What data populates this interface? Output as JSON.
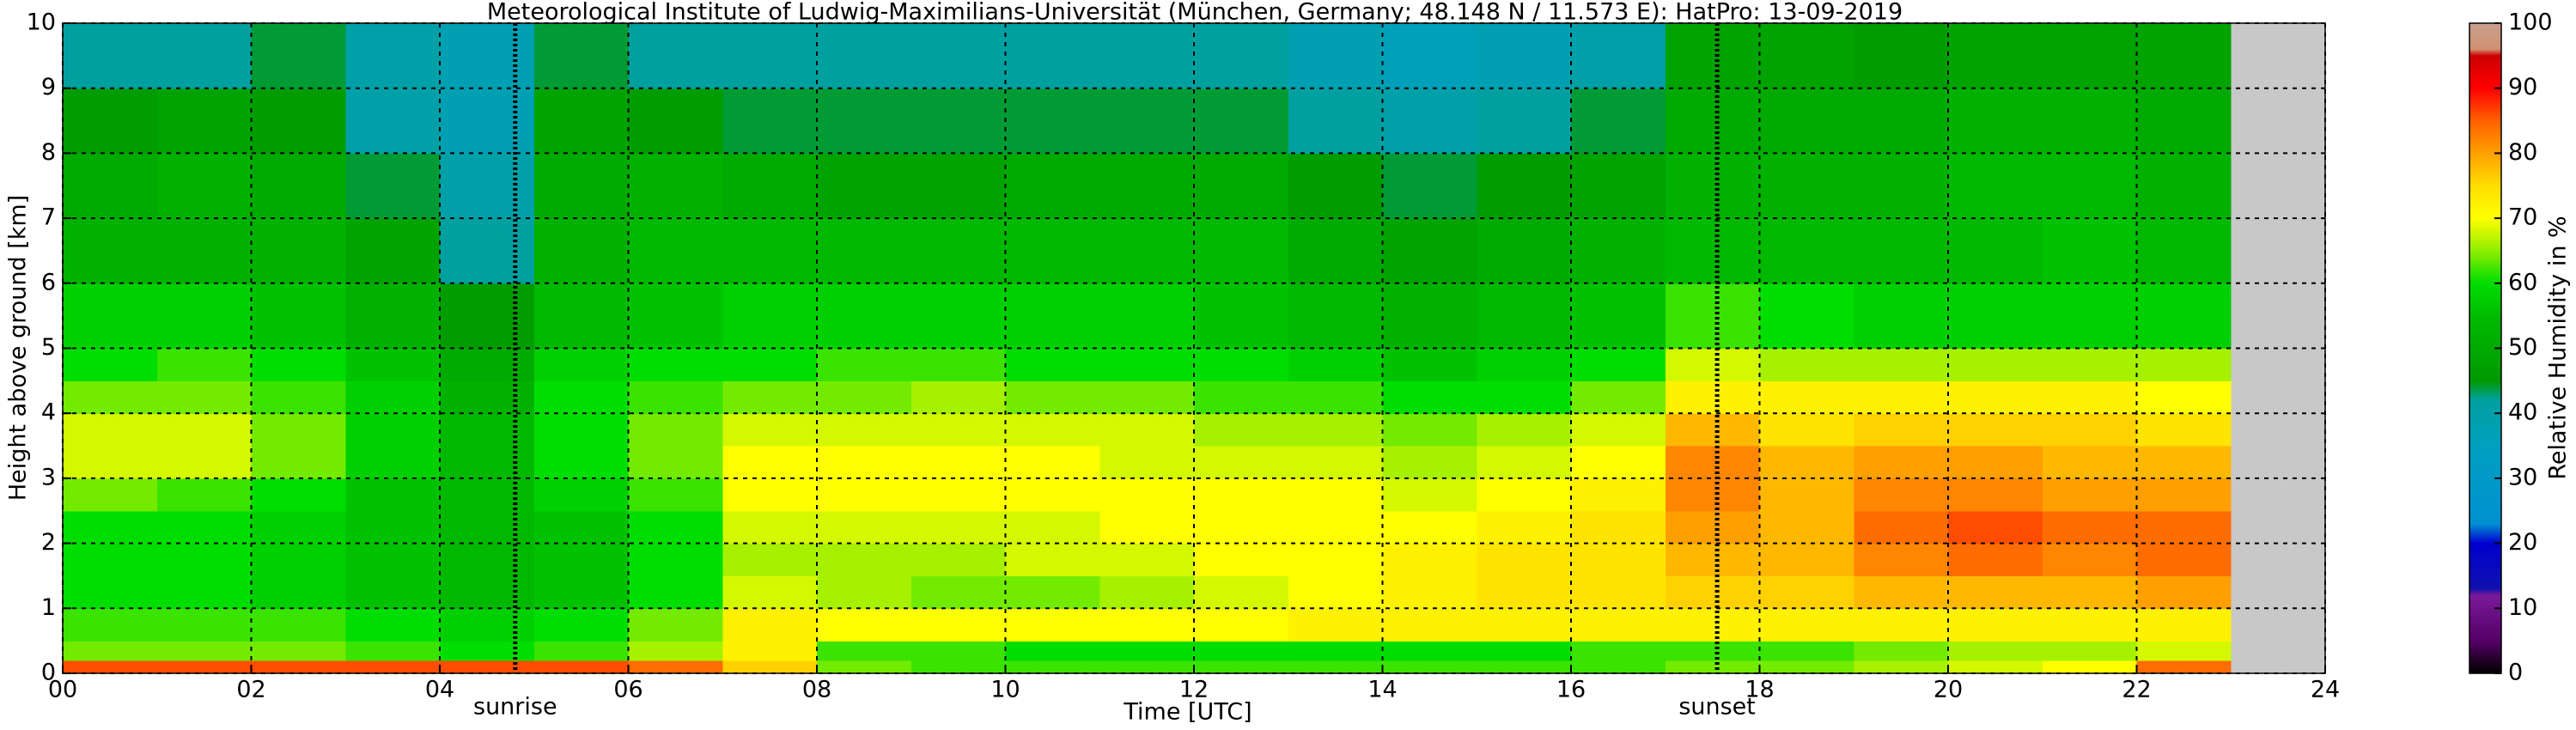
{
  "chart_data": {
    "type": "heatmap",
    "title": "Meteorological Institute of Ludwig-Maximilians-Universität (München, Germany; 48.148 N / 11.573 E):    HatPro: 13-09-2019",
    "x_label": "Time [UTC]",
    "y_label": "Height above ground [km]",
    "xlim": [
      0,
      24
    ],
    "ylim": [
      0,
      10
    ],
    "xticks": [
      {
        "value": 0,
        "label": "00"
      },
      {
        "value": 2,
        "label": "02"
      },
      {
        "value": 4,
        "label": "04"
      },
      {
        "value": 6,
        "label": "06"
      },
      {
        "value": 8,
        "label": "08"
      },
      {
        "value": 10,
        "label": "10"
      },
      {
        "value": 12,
        "label": "12"
      },
      {
        "value": 14,
        "label": "14"
      },
      {
        "value": 16,
        "label": "16"
      },
      {
        "value": 18,
        "label": "18"
      },
      {
        "value": 20,
        "label": "20"
      },
      {
        "value": 22,
        "label": "22"
      },
      {
        "value": 24,
        "label": "24"
      }
    ],
    "yticks": [
      0,
      1,
      2,
      3,
      4,
      5,
      6,
      7,
      8,
      9,
      10
    ],
    "grid": true,
    "x_edges": [
      0,
      1,
      2,
      3,
      4,
      5,
      6,
      7,
      8,
      9,
      10,
      11,
      12,
      13,
      14,
      15,
      16,
      17,
      18,
      19,
      20,
      21,
      22,
      23,
      24
    ],
    "y_edges": [
      0,
      0.2,
      0.5,
      1,
      1.5,
      2,
      2.5,
      3,
      3.5,
      4,
      4.5,
      5,
      6,
      7,
      8,
      9,
      10
    ],
    "z": [
      [
        86,
        86,
        86,
        86,
        86,
        86,
        84,
        76,
        64,
        62,
        62,
        62,
        62,
        62,
        62,
        62,
        62,
        64,
        64,
        66,
        68,
        70,
        84,
        null
      ],
      [
        64,
        64,
        64,
        62,
        60,
        62,
        66,
        72,
        62,
        62,
        60,
        60,
        60,
        60,
        60,
        60,
        62,
        62,
        62,
        64,
        66,
        66,
        68,
        null
      ],
      [
        62,
        62,
        62,
        60,
        58,
        60,
        64,
        72,
        70,
        70,
        70,
        70,
        70,
        72,
        72,
        72,
        72,
        72,
        72,
        72,
        72,
        72,
        72,
        null
      ],
      [
        60,
        60,
        58,
        56,
        54,
        56,
        60,
        68,
        66,
        64,
        64,
        66,
        68,
        70,
        72,
        74,
        74,
        76,
        76,
        78,
        78,
        78,
        80,
        null
      ],
      [
        60,
        60,
        58,
        56,
        54,
        56,
        60,
        66,
        66,
        66,
        68,
        68,
        70,
        70,
        72,
        74,
        74,
        78,
        78,
        82,
        84,
        82,
        84,
        null
      ],
      [
        60,
        60,
        58,
        56,
        54,
        56,
        60,
        68,
        68,
        68,
        68,
        70,
        70,
        70,
        70,
        72,
        74,
        80,
        78,
        84,
        86,
        84,
        84,
        null
      ],
      [
        64,
        62,
        60,
        56,
        54,
        58,
        62,
        70,
        70,
        70,
        70,
        70,
        70,
        70,
        68,
        70,
        72,
        82,
        78,
        82,
        82,
        80,
        80,
        null
      ],
      [
        68,
        68,
        64,
        58,
        54,
        60,
        64,
        70,
        70,
        70,
        70,
        68,
        68,
        68,
        66,
        68,
        70,
        82,
        78,
        80,
        80,
        78,
        78,
        null
      ],
      [
        68,
        68,
        64,
        58,
        54,
        60,
        64,
        68,
        68,
        68,
        68,
        68,
        66,
        66,
        64,
        66,
        68,
        78,
        74,
        76,
        76,
        76,
        74,
        null
      ],
      [
        64,
        64,
        62,
        58,
        52,
        60,
        62,
        64,
        64,
        66,
        64,
        64,
        62,
        62,
        60,
        60,
        64,
        72,
        72,
        72,
        72,
        72,
        70,
        null
      ],
      [
        60,
        62,
        60,
        56,
        50,
        58,
        60,
        60,
        62,
        62,
        60,
        60,
        60,
        58,
        56,
        58,
        60,
        68,
        66,
        66,
        66,
        66,
        66,
        null
      ],
      [
        58,
        58,
        56,
        52,
        46,
        54,
        56,
        58,
        58,
        58,
        58,
        58,
        56,
        54,
        52,
        54,
        56,
        62,
        60,
        58,
        58,
        58,
        58,
        null
      ],
      [
        52,
        52,
        52,
        48,
        42,
        52,
        54,
        54,
        54,
        54,
        54,
        54,
        54,
        50,
        48,
        50,
        52,
        54,
        54,
        54,
        54,
        56,
        54,
        null
      ],
      [
        50,
        52,
        50,
        44,
        40,
        50,
        52,
        50,
        48,
        48,
        50,
        50,
        50,
        46,
        44,
        46,
        48,
        52,
        52,
        52,
        54,
        54,
        52,
        null
      ],
      [
        46,
        48,
        46,
        40,
        38,
        48,
        46,
        44,
        44,
        44,
        44,
        44,
        44,
        42,
        40,
        42,
        44,
        50,
        50,
        50,
        52,
        52,
        50,
        null
      ],
      [
        42,
        42,
        44,
        40,
        38,
        44,
        42,
        42,
        42,
        42,
        42,
        42,
        42,
        38,
        36,
        38,
        40,
        48,
        48,
        46,
        48,
        48,
        48,
        null
      ]
    ],
    "missing_color": "#c8c8c8",
    "annotations": [
      {
        "x": 4.8,
        "label": "sunrise"
      },
      {
        "x": 17.55,
        "label": "sunset"
      }
    ],
    "colorbar": {
      "label": "Relative Humidity in %",
      "lim": [
        0,
        100
      ],
      "ticks": [
        0,
        10,
        20,
        30,
        40,
        50,
        60,
        70,
        80,
        90,
        100
      ],
      "scale": [
        [
          0,
          "#000000"
        ],
        [
          5,
          "#550066"
        ],
        [
          12,
          "#7a1a9a"
        ],
        [
          13,
          "#1010b0"
        ],
        [
          20,
          "#0000d0"
        ],
        [
          23,
          "#0090d0"
        ],
        [
          35,
          "#00a0c0"
        ],
        [
          42,
          "#00a0a0"
        ],
        [
          45,
          "#009900"
        ],
        [
          55,
          "#00bb00"
        ],
        [
          60,
          "#00dd00"
        ],
        [
          65,
          "#90ee00"
        ],
        [
          70,
          "#ffff00"
        ],
        [
          75,
          "#ffdd00"
        ],
        [
          80,
          "#ffa000"
        ],
        [
          85,
          "#ff6000"
        ],
        [
          90,
          "#ff0000"
        ],
        [
          95,
          "#cc0000"
        ],
        [
          96,
          "#d09070"
        ],
        [
          100,
          "#c8a090"
        ]
      ]
    }
  }
}
